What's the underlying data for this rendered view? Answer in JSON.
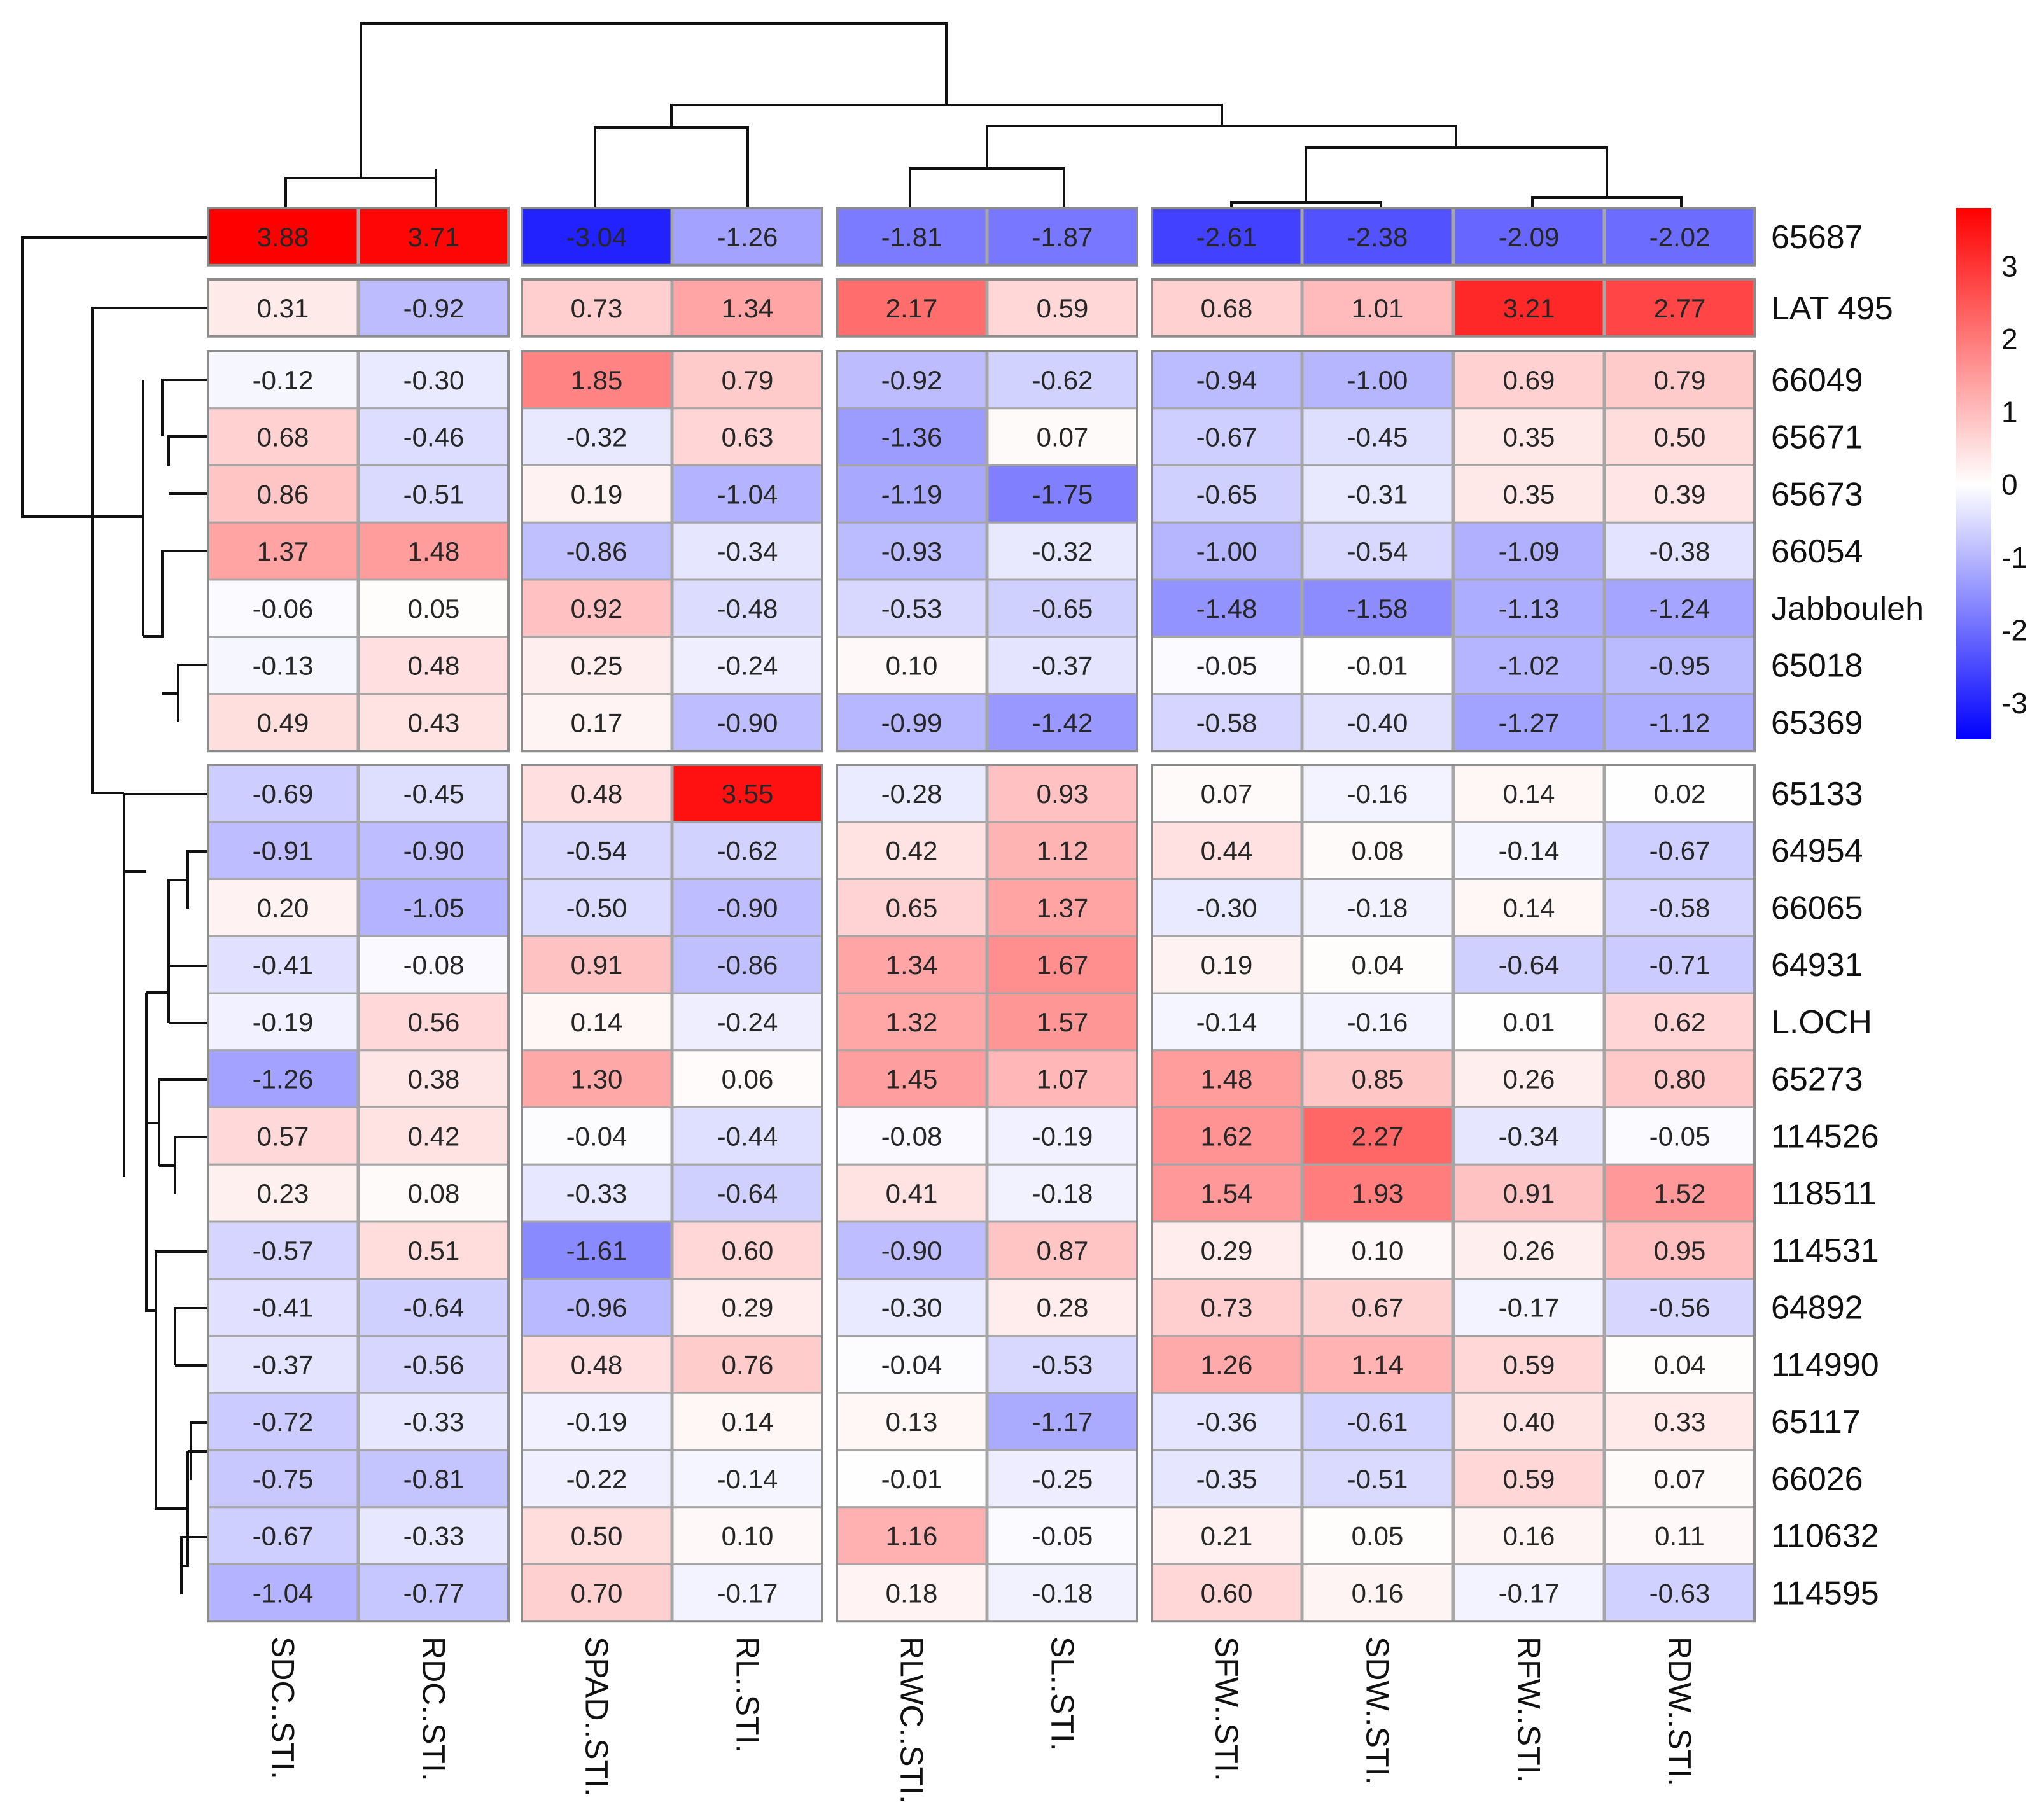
{
  "chart_data": {
    "type": "heatmap",
    "title": "",
    "columns": [
      "SDC..STI.",
      "RDC..STI.",
      "SPAD..STI.",
      "RL..STI.",
      "RLWC..STI.",
      "SL..STI.",
      "SFW..STI.",
      "SDW..STI.",
      "RFW..STI.",
      "RDW..STI."
    ],
    "rows": [
      "65687",
      "LAT 495",
      "66049",
      "65671",
      "65673",
      "66054",
      "Jabbouleh",
      "65018",
      "65369",
      "65133",
      "64954",
      "66065",
      "64931",
      "L.OCH",
      "65273",
      "114526",
      "118511",
      "114531",
      "64892",
      "114990",
      "65117",
      "66026",
      "110632",
      "114595"
    ],
    "values": [
      [
        3.88,
        3.71,
        -3.04,
        -1.26,
        -1.81,
        -1.87,
        -2.61,
        -2.38,
        -2.09,
        -2.02
      ],
      [
        0.31,
        -0.92,
        0.73,
        1.34,
        2.17,
        0.59,
        0.68,
        1.01,
        3.21,
        2.77
      ],
      [
        -0.12,
        -0.3,
        1.85,
        0.79,
        -0.92,
        -0.62,
        -0.94,
        -1.0,
        0.69,
        0.79
      ],
      [
        0.68,
        -0.46,
        -0.32,
        0.63,
        -1.36,
        0.07,
        -0.67,
        -0.45,
        0.35,
        0.5
      ],
      [
        0.86,
        -0.51,
        0.19,
        -1.04,
        -1.19,
        -1.75,
        -0.65,
        -0.31,
        0.35,
        0.39
      ],
      [
        1.37,
        1.48,
        -0.86,
        -0.34,
        -0.93,
        -0.32,
        -1.0,
        -0.54,
        -1.09,
        -0.38
      ],
      [
        -0.06,
        0.05,
        0.92,
        -0.48,
        -0.53,
        -0.65,
        -1.48,
        -1.58,
        -1.13,
        -1.24
      ],
      [
        -0.13,
        0.48,
        0.25,
        -0.24,
        0.1,
        -0.37,
        -0.05,
        -0.01,
        -1.02,
        -0.95
      ],
      [
        0.49,
        0.43,
        0.17,
        -0.9,
        -0.99,
        -1.42,
        -0.58,
        -0.4,
        -1.27,
        -1.12
      ],
      [
        -0.69,
        -0.45,
        0.48,
        3.55,
        -0.28,
        0.93,
        0.07,
        -0.16,
        0.14,
        0.02
      ],
      [
        -0.91,
        -0.9,
        -0.54,
        -0.62,
        0.42,
        1.12,
        0.44,
        0.08,
        -0.14,
        -0.67
      ],
      [
        0.2,
        -1.05,
        -0.5,
        -0.9,
        0.65,
        1.37,
        -0.3,
        -0.18,
        0.14,
        -0.58
      ],
      [
        -0.41,
        -0.08,
        0.91,
        -0.86,
        1.34,
        1.67,
        0.19,
        0.04,
        -0.64,
        -0.71
      ],
      [
        -0.19,
        0.56,
        0.14,
        -0.24,
        1.32,
        1.57,
        -0.14,
        -0.16,
        0.01,
        0.62
      ],
      [
        -1.26,
        0.38,
        1.3,
        0.06,
        1.45,
        1.07,
        1.48,
        0.85,
        0.26,
        0.8
      ],
      [
        0.57,
        0.42,
        -0.04,
        -0.44,
        -0.08,
        -0.19,
        1.62,
        2.27,
        -0.34,
        -0.05
      ],
      [
        0.23,
        0.08,
        -0.33,
        -0.64,
        0.41,
        -0.18,
        1.54,
        1.93,
        0.91,
        1.52
      ],
      [
        -0.57,
        0.51,
        -1.61,
        0.6,
        -0.9,
        0.87,
        0.29,
        0.1,
        0.26,
        0.95
      ],
      [
        -0.41,
        -0.64,
        -0.96,
        0.29,
        -0.3,
        0.28,
        0.73,
        0.67,
        -0.17,
        -0.56
      ],
      [
        -0.37,
        -0.56,
        0.48,
        0.76,
        -0.04,
        -0.53,
        1.26,
        1.14,
        0.59,
        0.04
      ],
      [
        -0.72,
        -0.33,
        -0.19,
        0.14,
        0.13,
        -1.17,
        -0.36,
        -0.61,
        0.4,
        0.33
      ],
      [
        -0.75,
        -0.81,
        -0.22,
        -0.14,
        -0.01,
        -0.25,
        -0.35,
        -0.51,
        0.59,
        0.07
      ],
      [
        -0.67,
        -0.33,
        0.5,
        0.1,
        1.16,
        -0.05,
        0.21,
        0.05,
        0.16,
        0.11
      ],
      [
        -1.04,
        -0.77,
        0.7,
        -0.17,
        0.18,
        -0.18,
        0.6,
        0.16,
        -0.17,
        -0.63
      ]
    ],
    "value_labels": [
      [
        "3.88",
        "3.71",
        "-3.04",
        "-1.26",
        "-1.81",
        "-1.87",
        "-2.61",
        "-2.38",
        "-2.09",
        "-2.02"
      ],
      [
        "0.31",
        "-0.92",
        "0.73",
        "1.34",
        "2.17",
        "0.59",
        "0.68",
        "1.01",
        "3.21",
        "2.77"
      ],
      [
        "-0.12",
        "-0.30",
        "1.85",
        "0.79",
        "-0.92",
        "-0.62",
        "-0.94",
        "-1.00",
        "0.69",
        "0.79"
      ],
      [
        "0.68",
        "-0.46",
        "-0.32",
        "0.63",
        "-1.36",
        "0.07",
        "-0.67",
        "-0.45",
        "0.35",
        "0.50"
      ],
      [
        "0.86",
        "-0.51",
        "0.19",
        "-1.04",
        "-1.19",
        "-1.75",
        "-0.65",
        "-0.31",
        "0.35",
        "0.39"
      ],
      [
        "1.37",
        "1.48",
        "-0.86",
        "-0.34",
        "-0.93",
        "-0.32",
        "-1.00",
        "-0.54",
        "-1.09",
        "-0.38"
      ],
      [
        "-0.06",
        "0.05",
        "0.92",
        "-0.48",
        "-0.53",
        "-0.65",
        "-1.48",
        "-1.58",
        "-1.13",
        "-1.24"
      ],
      [
        "-0.13",
        "0.48",
        "0.25",
        "-0.24",
        "0.10",
        "-0.37",
        "-0.05",
        "-0.01",
        "-1.02",
        "-0.95"
      ],
      [
        "0.49",
        "0.43",
        "0.17",
        "-0.90",
        "-0.99",
        "-1.42",
        "-0.58",
        "-0.40",
        "-1.27",
        "-1.12"
      ],
      [
        "-0.69",
        "-0.45",
        "0.48",
        "3.55",
        "-0.28",
        "0.93",
        "0.07",
        "-0.16",
        "0.14",
        "0.02"
      ],
      [
        "-0.91",
        "-0.90",
        "-0.54",
        "-0.62",
        "0.42",
        "1.12",
        "0.44",
        "0.08",
        "-0.14",
        "-0.67"
      ],
      [
        "0.20",
        "-1.05",
        "-0.50",
        "-0.90",
        "0.65",
        "1.37",
        "-0.30",
        "-0.18",
        "0.14",
        "-0.58"
      ],
      [
        "-0.41",
        "-0.08",
        "0.91",
        "-0.86",
        "1.34",
        "1.67",
        "0.19",
        "0.04",
        "-0.64",
        "-0.71"
      ],
      [
        "-0.19",
        "0.56",
        "0.14",
        "-0.24",
        "1.32",
        "1.57",
        "-0.14",
        "-0.16",
        "0.01",
        "0.62"
      ],
      [
        "-1.26",
        "0.38",
        "1.30",
        "0.06",
        "1.45",
        "1.07",
        "1.48",
        "0.85",
        "0.26",
        "0.80"
      ],
      [
        "0.57",
        "0.42",
        "-0.04",
        "-0.44",
        "-0.08",
        "-0.19",
        "1.62",
        "2.27",
        "-0.34",
        "-0.05"
      ],
      [
        "0.23",
        "0.08",
        "-0.33",
        "-0.64",
        "0.41",
        "-0.18",
        "1.54",
        "1.93",
        "0.91",
        "1.52"
      ],
      [
        "-0.57",
        "0.51",
        "-1.61",
        "0.60",
        "-0.90",
        "0.87",
        "0.29",
        "0.10",
        "0.26",
        "0.95"
      ],
      [
        "-0.41",
        "-0.64",
        "-0.96",
        "0.29",
        "-0.30",
        "0.28",
        "0.73",
        "0.67",
        "-0.17",
        "-0.56"
      ],
      [
        "-0.37",
        "-0.56",
        "0.48",
        "0.76",
        "-0.04",
        "-0.53",
        "1.26",
        "1.14",
        "0.59",
        "0.04"
      ],
      [
        "-0.72",
        "-0.33",
        "-0.19",
        "0.14",
        "0.13",
        "-1.17",
        "-0.36",
        "-0.61",
        "0.40",
        "0.33"
      ],
      [
        "-0.75",
        "-0.81",
        "-0.22",
        "-0.14",
        "-0.01",
        "-0.25",
        "-0.35",
        "-0.51",
        "0.59",
        "0.07"
      ],
      [
        "-0.67",
        "-0.33",
        "0.50",
        "0.10",
        "1.16",
        "-0.05",
        "0.21",
        "0.05",
        "0.16",
        "0.11"
      ],
      [
        "-1.04",
        "-0.77",
        "0.70",
        "-0.17",
        "0.18",
        "-0.18",
        "0.60",
        "0.16",
        "-0.17",
        "-0.63"
      ]
    ],
    "column_groups": [
      [
        0,
        1
      ],
      [
        2,
        3
      ],
      [
        4,
        5
      ],
      [
        6,
        7,
        8,
        9
      ]
    ],
    "row_groups": [
      [
        0
      ],
      [
        1
      ],
      [
        2,
        3,
        4,
        5,
        6,
        7,
        8
      ],
      [
        9,
        10,
        11,
        12,
        13,
        14,
        15,
        16,
        17,
        18,
        19,
        20,
        21,
        22,
        23
      ]
    ],
    "color_scale": {
      "min": -3.5,
      "max": 3.8,
      "low_color": "#0000FF",
      "mid_color": "#FFFFFF",
      "high_color": "#FF0000",
      "legend_ticks": [
        "3",
        "2",
        "1",
        "0",
        "-1",
        "-2",
        "-3"
      ],
      "legend_tick_values": [
        3,
        2,
        1,
        0,
        -1,
        -2,
        -3
      ],
      "legend_placement": "right"
    },
    "dendrograms": {
      "columns": "top",
      "rows": "left"
    }
  }
}
